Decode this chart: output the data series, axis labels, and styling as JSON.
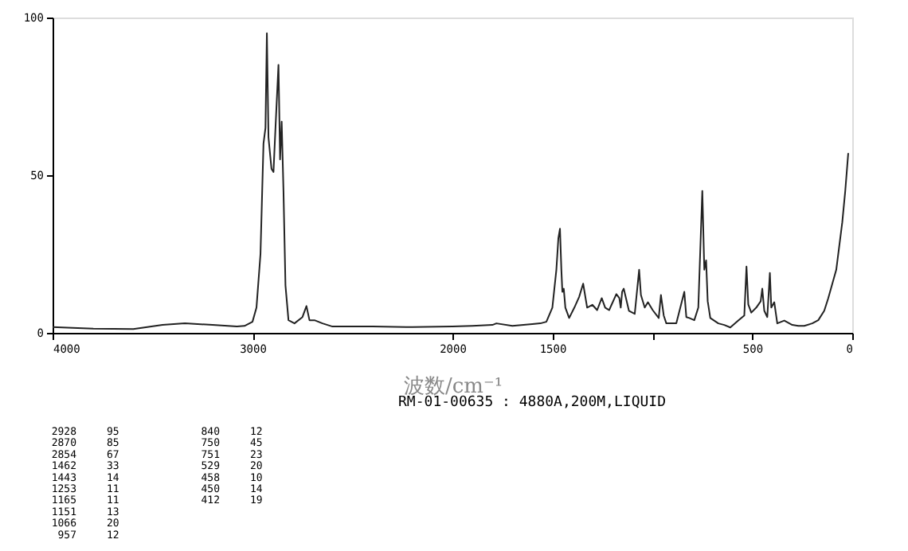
{
  "chart_data": {
    "type": "line",
    "xlabel": "波数/cm⁻¹",
    "x": [
      4000,
      3900,
      3796,
      3596,
      3450,
      3338,
      3200,
      3078,
      3040,
      3000,
      2980,
      2960,
      2945,
      2935,
      2928,
      2920,
      2905,
      2895,
      2885,
      2870,
      2862,
      2854,
      2845,
      2835,
      2820,
      2790,
      2750,
      2730,
      2715,
      2690,
      2650,
      2600,
      2500,
      2400,
      2200,
      2000,
      1900,
      1800,
      1780,
      1700,
      1600,
      1560,
      1530,
      1500,
      1480,
      1470,
      1462,
      1455,
      1450,
      1443,
      1435,
      1416,
      1390,
      1366,
      1346,
      1326,
      1300,
      1276,
      1253,
      1236,
      1216,
      1180,
      1165,
      1158,
      1151,
      1143,
      1117,
      1088,
      1066,
      1057,
      1038,
      1022,
      998,
      968,
      957,
      943,
      930,
      880,
      840,
      830,
      815,
      790,
      770,
      750,
      740,
      731,
      723,
      710,
      670,
      640,
      610,
      570,
      540,
      529,
      520,
      505,
      480,
      458,
      450,
      440,
      425,
      412,
      405,
      390,
      375,
      340,
      300,
      270,
      240,
      200,
      170,
      140,
      120,
      80,
      50,
      35,
      20
    ],
    "values": [
      1.8,
      1.6,
      1.3,
      1.2,
      2.5,
      3.0,
      2.5,
      2.0,
      2.2,
      3.5,
      8,
      25,
      60,
      65,
      95,
      62,
      52,
      51,
      65,
      85,
      55,
      67,
      45,
      15,
      4,
      3,
      5,
      8.5,
      4,
      4,
      3,
      2,
      2,
      2,
      1.8,
      2,
      2.2,
      2.5,
      3,
      2.2,
      2.8,
      3,
      3.5,
      8,
      20,
      30,
      33,
      20,
      13,
      14,
      8,
      4.7,
      8,
      11.4,
      15.6,
      8,
      8.9,
      7.2,
      11,
      8,
      7.2,
      12.3,
      11,
      8,
      13,
      14,
      7,
      6,
      20,
      12,
      8,
      9.7,
      7.2,
      4.7,
      12,
      5.5,
      3,
      3,
      13,
      5,
      4.7,
      4,
      8,
      45,
      20,
      23,
      10,
      4.7,
      3,
      2.5,
      1.7,
      3.9,
      5.5,
      21,
      9,
      6.4,
      8,
      10,
      14,
      7,
      5,
      19,
      8,
      9.7,
      3,
      3.9,
      2.5,
      2.2,
      2.2,
      3,
      4,
      7,
      11,
      20,
      35,
      45,
      57
    ],
    "color": "#222222",
    "xlim": [
      4000,
      0
    ],
    "xticks": [
      4000,
      3000,
      2000,
      1500,
      {
        "value": 1000,
        "label": null
      },
      500,
      0
    ],
    "ylim": [
      0,
      100
    ],
    "yticks": [
      0,
      50,
      100
    ],
    "grid": false,
    "line_style": "solid",
    "marker": "none",
    "annotations": [
      "RM-01-00635 : 4880A,200M,LIQUID",
      "2928",
      "95",
      "2870",
      "85",
      "2854",
      "67",
      "1462",
      "33",
      "1443",
      "14",
      "1253",
      "11",
      "1165",
      "11",
      "1151",
      "13",
      "1066",
      "20",
      "957",
      "12",
      "840",
      "12",
      "750",
      "45",
      "751",
      "23",
      "529",
      "20",
      "458",
      "10",
      "450",
      "14",
      "412",
      "19"
    ]
  }
}
